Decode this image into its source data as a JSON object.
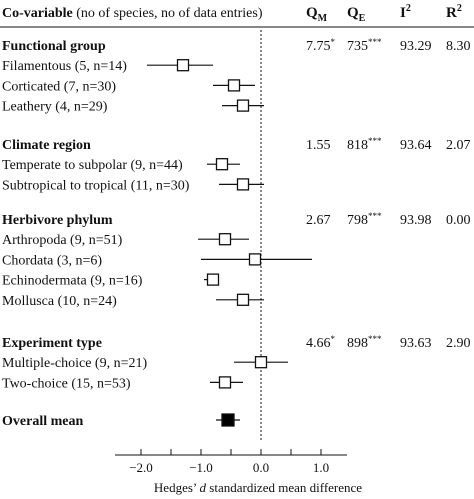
{
  "header": {
    "covariable_bold": "Co-variable",
    "covariable_rest": " (no of species, no of data entries)",
    "qm": "Q",
    "qm_sub": "M",
    "qe": "Q",
    "qe_sub": "E",
    "i2": "I",
    "i2_sup": "2",
    "r2": "R",
    "r2_sup": "2"
  },
  "chart_data": {
    "type": "forest",
    "xlabel_pre": "Hedges’ ",
    "xlabel_italic": "d",
    "xlabel_post": " standardized mean difference",
    "xlim": [
      -2.5,
      1.5
    ],
    "ticks": [
      -2.0,
      -1.5,
      -1.0,
      -0.5,
      0.0,
      0.5,
      1.0
    ],
    "tick_labels": [
      "−2.0",
      "",
      "−1.0",
      "",
      "0.0",
      "",
      "1.0"
    ],
    "reference_line": 0,
    "groups": [
      {
        "name": "Functional group",
        "qm": "7.75*",
        "qe": "735***",
        "i2": "93.29",
        "r2": "8.30",
        "items": [
          {
            "label": "Filamentous (5, n=14)",
            "mean": -1.3,
            "lo": -1.9,
            "hi": -0.8
          },
          {
            "label": "Corticated (7, n=30)",
            "mean": -0.45,
            "lo": -0.8,
            "hi": -0.1
          },
          {
            "label": "Leathery (4, n=29)",
            "mean": -0.3,
            "lo": -0.65,
            "hi": 0.05
          }
        ]
      },
      {
        "name": "Climate region",
        "qm": "1.55",
        "qe": "818***",
        "i2": "93.64",
        "r2": "2.07",
        "items": [
          {
            "label": "Temperate to subpolar (9, n=44)",
            "mean": -0.65,
            "lo": -0.9,
            "hi": -0.35
          },
          {
            "label": "Subtropical to tropical (11, n=30)",
            "mean": -0.3,
            "lo": -0.7,
            "hi": 0.05
          }
        ]
      },
      {
        "name": "Herbivore phylum",
        "qm": "2.67",
        "qe": "798***",
        "i2": "93.98",
        "r2": "0.00",
        "items": [
          {
            "label": "Arthropoda (9, n=51)",
            "mean": -0.6,
            "lo": -1.05,
            "hi": -0.2
          },
          {
            "label": "Chordata (3, n=6)",
            "mean": -0.1,
            "lo": -1.0,
            "hi": 0.85
          },
          {
            "label": "Echinodermata (9, n=16)",
            "mean": -0.8,
            "lo": -0.95,
            "hi": -0.7
          },
          {
            "label": "Mollusca (10, n=24)",
            "mean": -0.3,
            "lo": -0.75,
            "hi": 0.05
          }
        ]
      },
      {
        "name": "Experiment type",
        "qm": "4.66*",
        "qe": "898***",
        "i2": "93.63",
        "r2": "2.90",
        "items": [
          {
            "label": "Multiple-choice (9, n=21)",
            "mean": 0.0,
            "lo": -0.45,
            "hi": 0.45
          },
          {
            "label": "Two-choice (15, n=53)",
            "mean": -0.6,
            "lo": -0.85,
            "hi": -0.3
          }
        ]
      }
    ],
    "overall": {
      "label": "Overall mean",
      "mean": -0.55,
      "lo": -0.75,
      "hi": -0.35
    }
  }
}
